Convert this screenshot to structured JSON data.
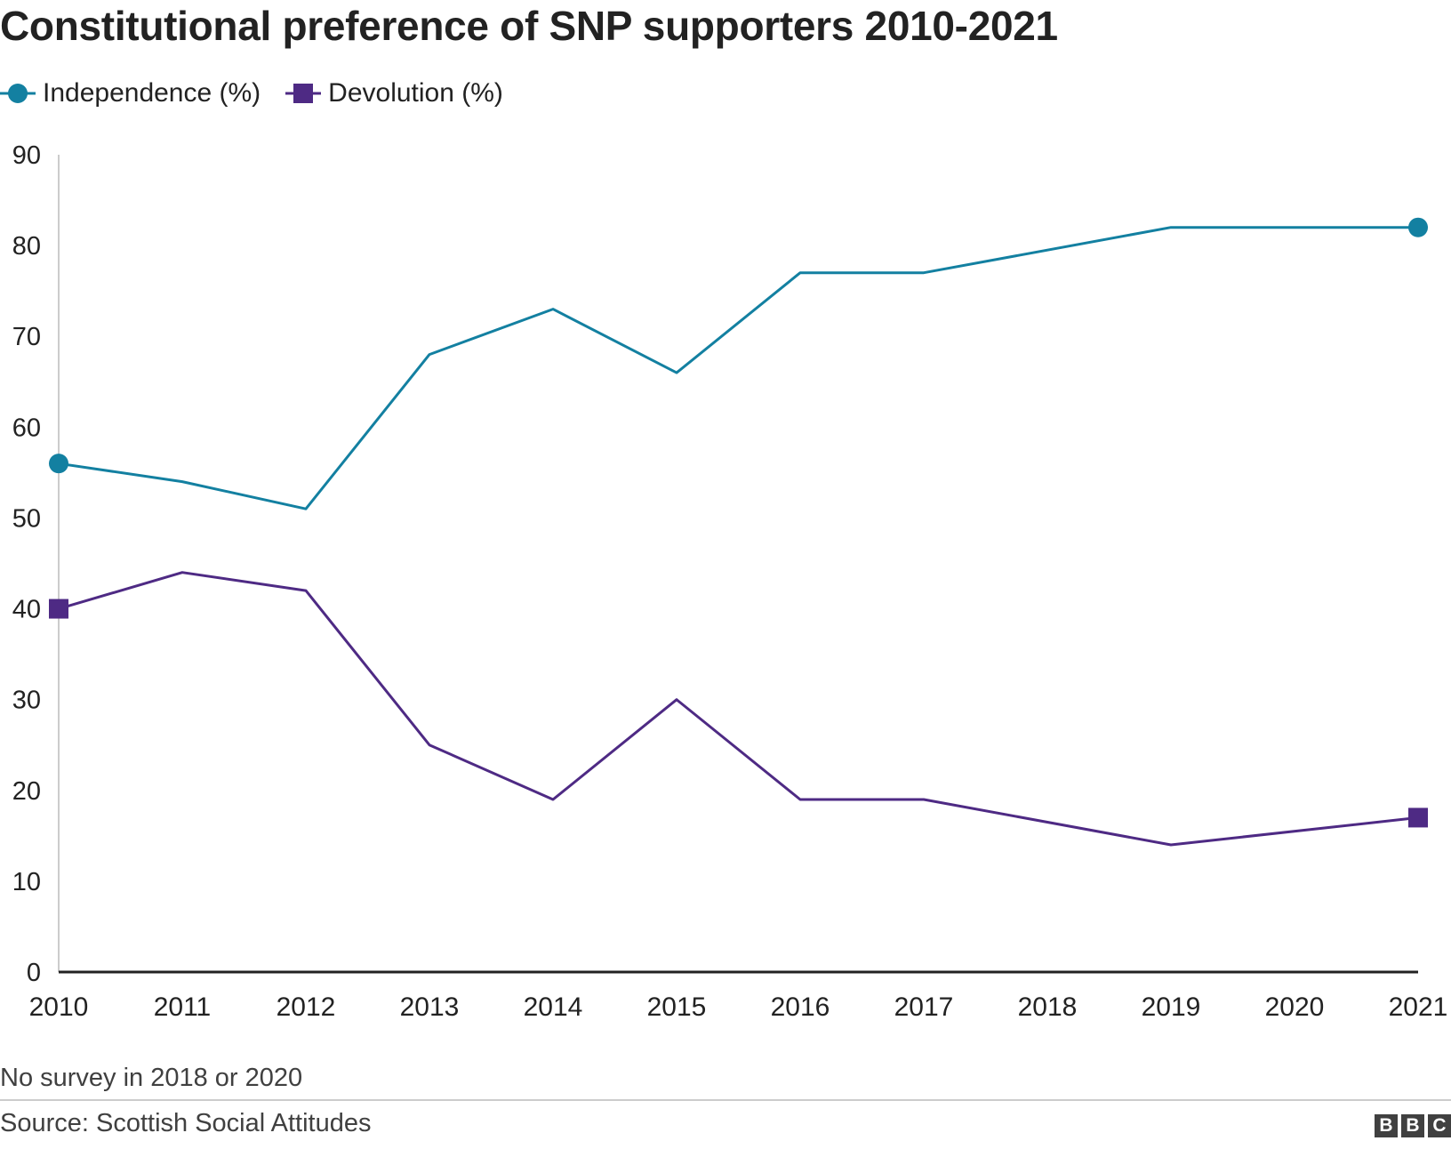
{
  "title": "Constitutional preference of SNP supporters 2010-2021",
  "legend": [
    {
      "label": "Independence (%)",
      "color": "#1380A1",
      "marker": "circle"
    },
    {
      "label": "Devolution (%)",
      "color": "#4E2A84",
      "marker": "square"
    }
  ],
  "chart_data": {
    "type": "line",
    "title": "Constitutional preference of SNP supporters 2010-2021",
    "xlabel": "",
    "ylabel": "",
    "x": [
      2010,
      2011,
      2012,
      2013,
      2014,
      2015,
      2016,
      2017,
      2018,
      2019,
      2020,
      2021
    ],
    "x_tick_labels": [
      "2010",
      "2011",
      "2012",
      "2013",
      "2014",
      "2015",
      "2016",
      "2017",
      "2018",
      "2019",
      "2020",
      "2021"
    ],
    "series": [
      {
        "name": "Independence (%)",
        "color": "#1380A1",
        "marker": "circle",
        "points": [
          [
            2010,
            56
          ],
          [
            2011,
            54
          ],
          [
            2012,
            51
          ],
          [
            2013,
            68
          ],
          [
            2014,
            73
          ],
          [
            2015,
            66
          ],
          [
            2016,
            77
          ],
          [
            2017,
            77
          ],
          [
            2019,
            82
          ],
          [
            2021,
            82
          ]
        ]
      },
      {
        "name": "Devolution (%)",
        "color": "#4E2A84",
        "marker": "square",
        "points": [
          [
            2010,
            40
          ],
          [
            2011,
            44
          ],
          [
            2012,
            42
          ],
          [
            2013,
            25
          ],
          [
            2014,
            19
          ],
          [
            2015,
            30
          ],
          [
            2016,
            19
          ],
          [
            2017,
            19
          ],
          [
            2019,
            14
          ],
          [
            2021,
            17
          ]
        ]
      }
    ],
    "markers_on": [
      "first",
      "last"
    ],
    "ylim": [
      0,
      90
    ],
    "yticks": [
      0,
      10,
      20,
      30,
      40,
      50,
      60,
      70,
      80,
      90
    ],
    "xlim": [
      2010,
      2021
    ],
    "grid": false,
    "legend_position": "top-left"
  },
  "footer": {
    "note": "No survey in 2018 or 2020",
    "source": "Source: Scottish Social Attitudes",
    "logo_letters": [
      "B",
      "B",
      "C"
    ]
  }
}
